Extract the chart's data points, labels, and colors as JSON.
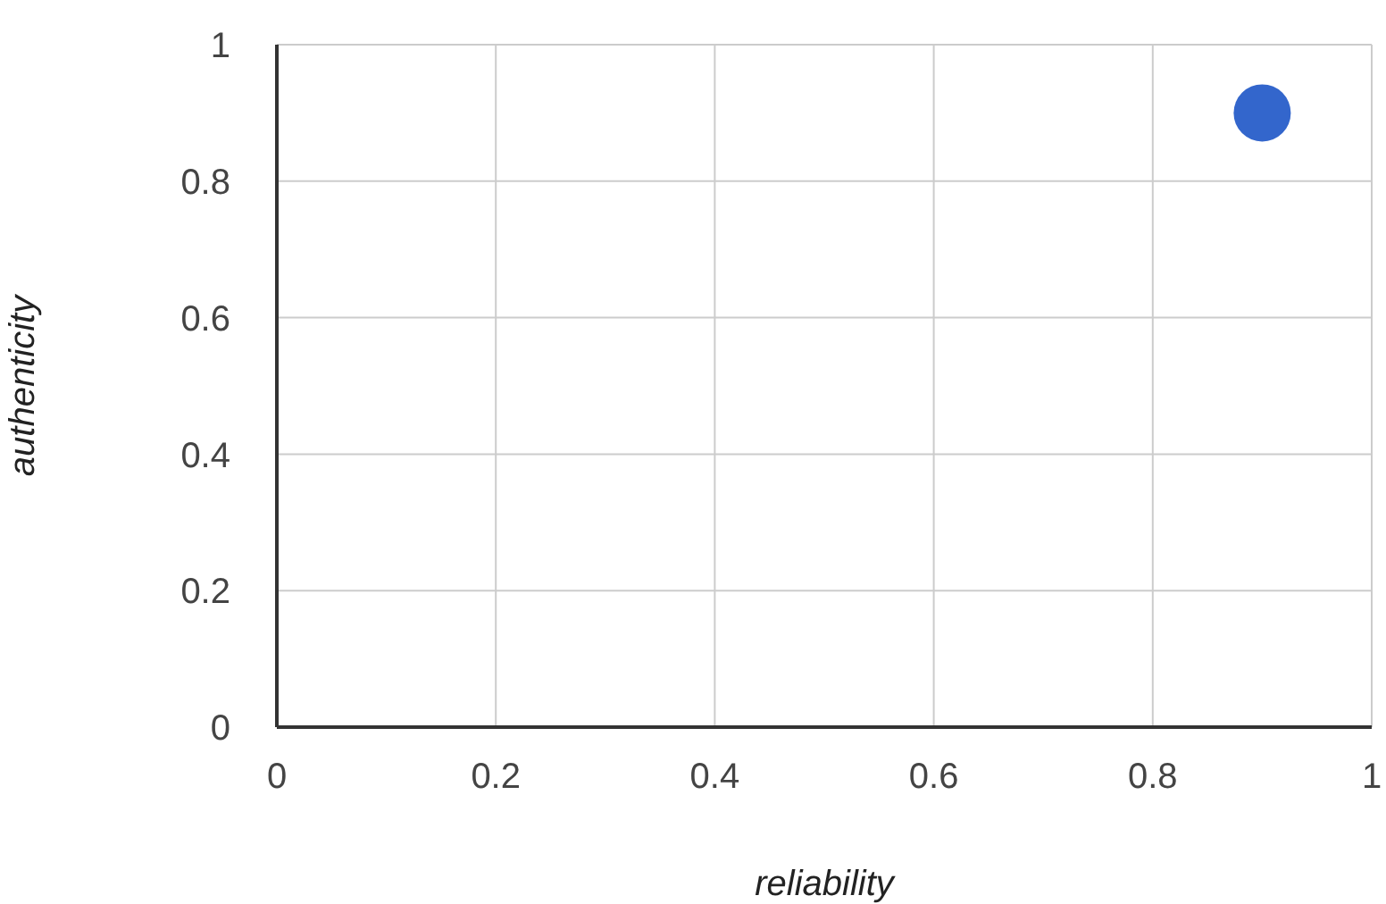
{
  "chart_data": {
    "type": "scatter",
    "xlabel": "reliability",
    "ylabel": "authenticity",
    "x": [
      0.9
    ],
    "series": [
      {
        "color": "#3366cc",
        "values": [
          0.9
        ]
      }
    ],
    "xlim": [
      0,
      1
    ],
    "xticks": [
      0,
      0.2,
      0.4,
      0.6,
      0.8,
      1
    ],
    "ylim": [
      0,
      1
    ],
    "yticks": [
      0,
      0.2,
      0.4,
      0.6,
      0.8,
      1
    ],
    "grid": true,
    "marker": "circle"
  }
}
